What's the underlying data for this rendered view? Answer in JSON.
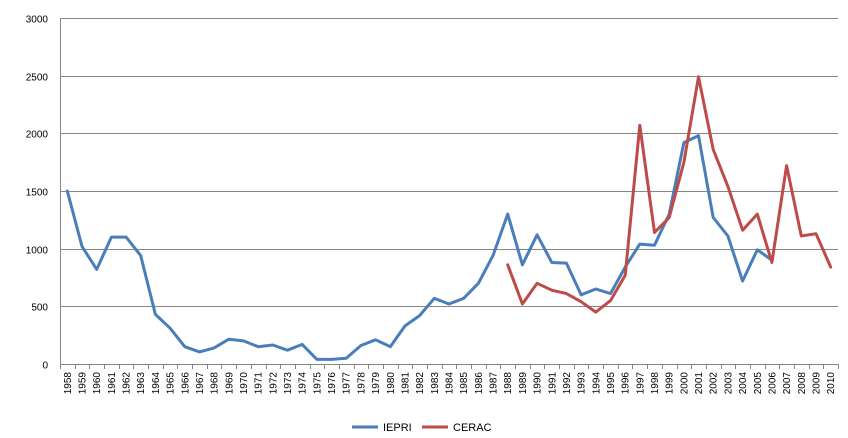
{
  "chart_data": {
    "type": "line",
    "title": "",
    "xlabel": "",
    "ylabel": "",
    "ylim": [
      0,
      3000
    ],
    "yticks": [
      "0",
      "500",
      "1000",
      "1500",
      "2000",
      "2500",
      "3000"
    ],
    "grid": true,
    "legend_position": "bottom",
    "x": [
      "1958",
      "1959",
      "1960",
      "1961",
      "1962",
      "1963",
      "1964",
      "1965",
      "1966",
      "1967",
      "1968",
      "1969",
      "1970",
      "1971",
      "1972",
      "1973",
      "1974",
      "1975",
      "1976",
      "1977",
      "1978",
      "1979",
      "1980",
      "1981",
      "1982",
      "1983",
      "1984",
      "1985",
      "1986",
      "1987",
      "1988",
      "1989",
      "1990",
      "1991",
      "1992",
      "1993",
      "1994",
      "1995",
      "1996",
      "1997",
      "1998",
      "1999",
      "2000",
      "2001",
      "2002",
      "2003",
      "2004",
      "2005",
      "2006",
      "2007",
      "2008",
      "2009",
      "2010"
    ],
    "series": [
      {
        "name": "IEPRI",
        "color": "#4a7ebb",
        "values": [
          1500,
          1020,
          820,
          1100,
          1100,
          940,
          430,
          310,
          150,
          105,
          140,
          215,
          200,
          150,
          165,
          120,
          170,
          40,
          40,
          50,
          160,
          210,
          150,
          330,
          420,
          570,
          520,
          570,
          700,
          940,
          1300,
          860,
          1120,
          880,
          875,
          600,
          650,
          610,
          840,
          1040,
          1030,
          1300,
          1920,
          1980,
          1270,
          1110,
          720,
          990,
          900,
          null,
          null,
          null,
          null
        ]
      },
      {
        "name": "CERAC",
        "color": "#be4b48",
        "values": [
          null,
          null,
          null,
          null,
          null,
          null,
          null,
          null,
          null,
          null,
          null,
          null,
          null,
          null,
          null,
          null,
          null,
          null,
          null,
          null,
          null,
          null,
          null,
          null,
          null,
          null,
          null,
          null,
          null,
          null,
          860,
          520,
          700,
          640,
          610,
          540,
          450,
          550,
          770,
          2070,
          1140,
          1270,
          1750,
          2490,
          1860,
          1540,
          1160,
          1300,
          880,
          1720,
          1110,
          1130,
          840
        ]
      }
    ]
  }
}
